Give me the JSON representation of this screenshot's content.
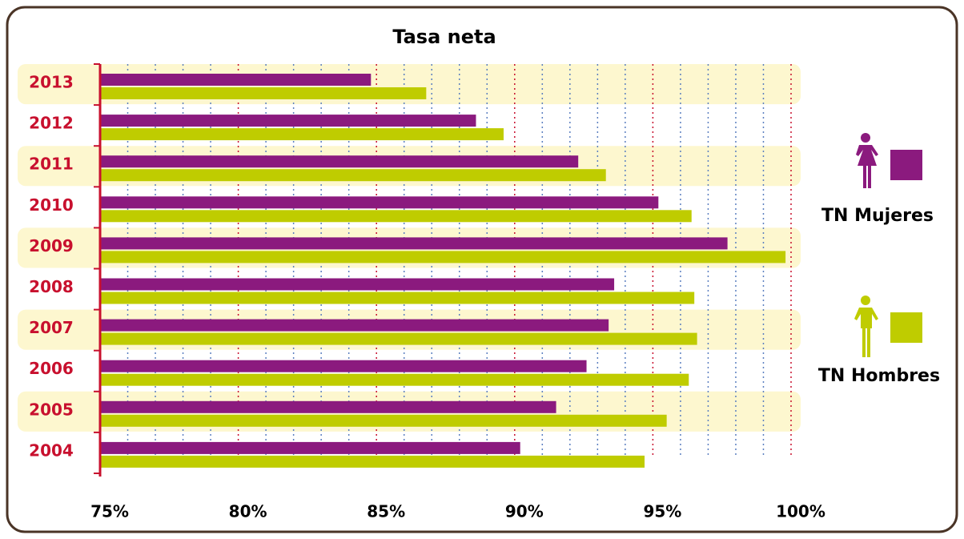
{
  "chart_data": {
    "type": "bar",
    "orientation": "horizontal",
    "title": "Tasa neta",
    "categories": [
      "2013",
      "2012",
      "2011",
      "2010",
      "2009",
      "2008",
      "2007",
      "2006",
      "2005",
      "2004"
    ],
    "series": [
      {
        "name": "TN Mujeres",
        "color": "#8b1a7e",
        "values": [
          84.8,
          88.6,
          92.3,
          95.2,
          97.7,
          93.6,
          93.4,
          92.6,
          91.5,
          90.2
        ]
      },
      {
        "name": "TN Hombres",
        "color": "#bfcc00",
        "values": [
          86.8,
          89.6,
          93.3,
          96.4,
          99.8,
          96.5,
          96.6,
          96.3,
          95.5,
          94.7
        ]
      }
    ],
    "xlim": [
      75,
      100
    ],
    "xticks": [
      {
        "value": 75,
        "label": "75%"
      },
      {
        "value": 80,
        "label": "80%"
      },
      {
        "value": 85,
        "label": "85%"
      },
      {
        "value": 90,
        "label": "90%"
      },
      {
        "value": 95,
        "label": "95%"
      },
      {
        "value": 100,
        "label": "100%"
      }
    ],
    "xticks_minor": [
      76,
      77,
      78,
      79,
      81,
      82,
      83,
      84,
      86,
      87,
      88,
      89,
      91,
      92,
      93,
      94,
      96,
      97,
      98,
      99
    ],
    "grid": true,
    "legend": "right"
  }
}
